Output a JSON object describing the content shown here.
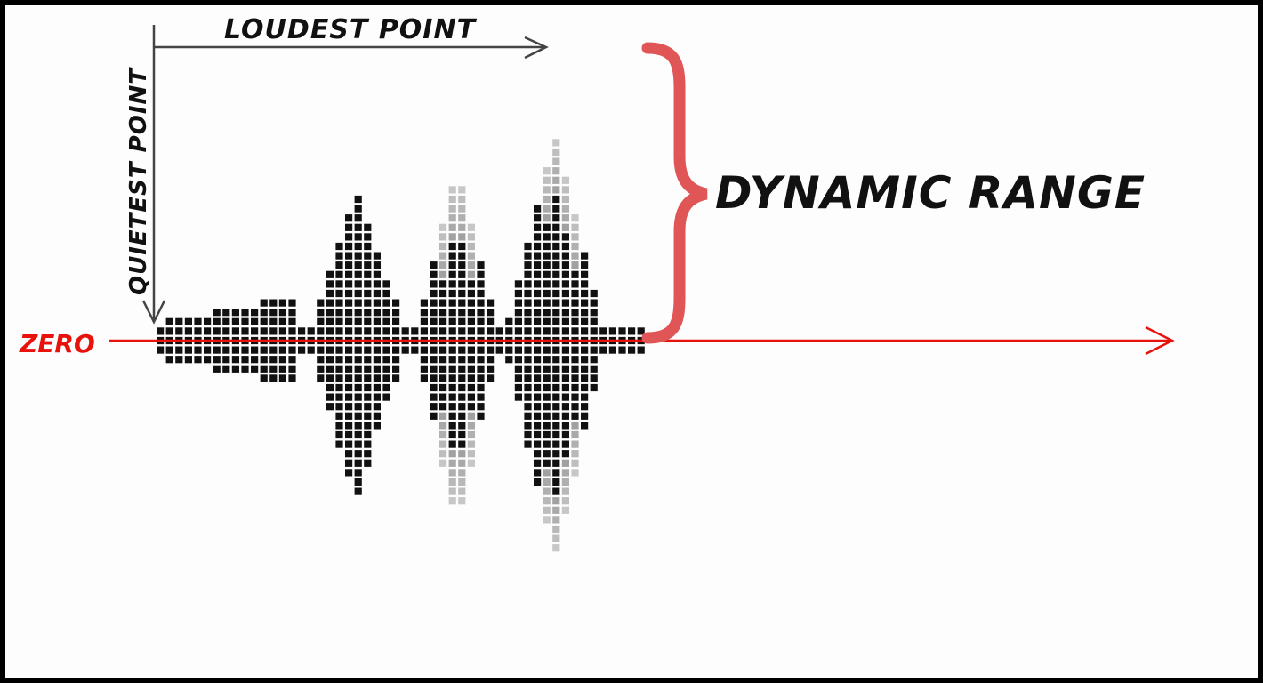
{
  "labels": {
    "loudest_point": "LOUDEST POINT",
    "quietest_point": "QUIETEST POINT",
    "zero": "ZERO",
    "dynamic_range": "DYNAMIC RANGE"
  },
  "colors": {
    "background": "#fdfdfd",
    "frame": "#000000",
    "waveform": "#111111",
    "waveform_faded": "#9a9a9a",
    "zero_line": "#e8120c",
    "brace": "#e05555",
    "guide_arrows": "#444444",
    "label_text": "#111111",
    "zero_text": "#e8120c"
  },
  "waveform": {
    "shape": "dot-matrix amplitude envelope",
    "bursts": [
      {
        "name": "burst-1",
        "relative_peak": 0.73,
        "faded_tail": false
      },
      {
        "name": "burst-2",
        "relative_peak": 0.83,
        "faded_tail": true
      },
      {
        "name": "burst-3",
        "relative_peak": 1.0,
        "faded_tail": true
      }
    ]
  }
}
